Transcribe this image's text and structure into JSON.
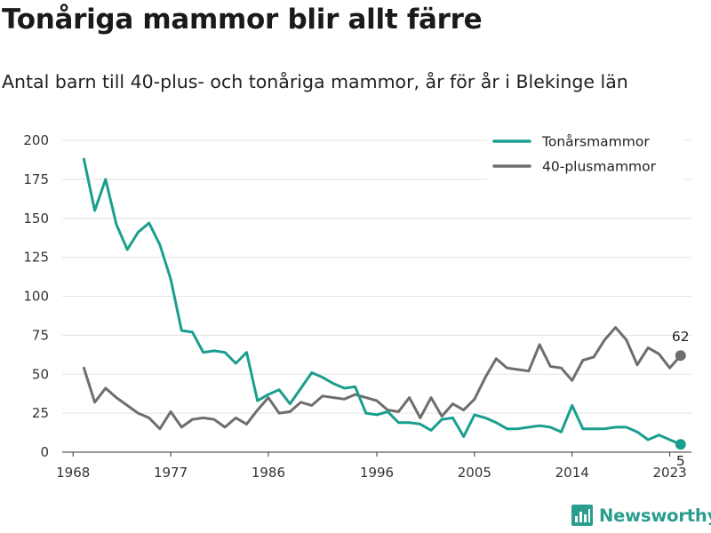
{
  "header": {
    "title": "Tonåriga mammor blir allt färre",
    "subtitle": "Antal barn till 40-plus- och tonåriga mammor, år för år i Blekinge län"
  },
  "brand": {
    "name": "Newsworthy",
    "icon": "bar-chart-icon",
    "color": "#2a9d8f"
  },
  "chart_data": {
    "type": "line",
    "x": [
      1969,
      1970,
      1971,
      1972,
      1973,
      1974,
      1975,
      1976,
      1977,
      1978,
      1979,
      1980,
      1981,
      1982,
      1983,
      1984,
      1985,
      1986,
      1987,
      1988,
      1989,
      1990,
      1991,
      1992,
      1993,
      1994,
      1995,
      1996,
      1997,
      1998,
      1999,
      2000,
      2001,
      2002,
      2003,
      2004,
      2005,
      2006,
      2007,
      2008,
      2009,
      2010,
      2011,
      2012,
      2013,
      2014,
      2015,
      2016,
      2017,
      2018,
      2019,
      2020,
      2021,
      2022,
      2023,
      2024
    ],
    "series": [
      {
        "name": "Tonårsmammor",
        "color": "#1a9e8f",
        "values": [
          188,
          155,
          175,
          146,
          130,
          141,
          147,
          133,
          111,
          78,
          77,
          64,
          65,
          64,
          57,
          64,
          33,
          37,
          40,
          31,
          41,
          51,
          48,
          44,
          41,
          42,
          25,
          24,
          26,
          19,
          19,
          18,
          14,
          21,
          22,
          10,
          24,
          22,
          19,
          15,
          15,
          16,
          17,
          16,
          13,
          30,
          15,
          15,
          15,
          16,
          16,
          13,
          8,
          11,
          8,
          5
        ],
        "end_label": "5"
      },
      {
        "name": "40-plusmammor",
        "color": "#6e6e70",
        "values": [
          54,
          32,
          41,
          35,
          30,
          25,
          22,
          15,
          26,
          16,
          21,
          22,
          21,
          16,
          22,
          18,
          27,
          35,
          25,
          26,
          32,
          30,
          36,
          35,
          34,
          37,
          35,
          33,
          27,
          26,
          35,
          22,
          35,
          23,
          31,
          27,
          34,
          48,
          60,
          54,
          53,
          52,
          69,
          55,
          54,
          46,
          59,
          61,
          72,
          80,
          72,
          56,
          67,
          63,
          54,
          62
        ],
        "end_label": "62"
      }
    ],
    "x_ticks": [
      1968,
      1977,
      1986,
      1996,
      2005,
      2014,
      2023
    ],
    "y_ticks": [
      0,
      25,
      50,
      75,
      100,
      125,
      150,
      175,
      200
    ],
    "xlim": [
      1967,
      2025
    ],
    "ylim": [
      0,
      200
    ],
    "grid": "horizontal",
    "legend_position": "top-right"
  }
}
